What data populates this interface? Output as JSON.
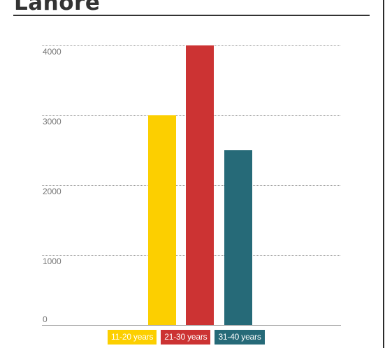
{
  "page": {
    "title": "Lahore"
  },
  "chart_data": {
    "type": "bar",
    "title": "Lahore",
    "categories": [
      "11-20 years",
      "21-30 years",
      "31-40 years"
    ],
    "values": [
      3000,
      4000,
      2500
    ],
    "colors": [
      "#fccf00",
      "#cc3333",
      "#266a78"
    ],
    "ylim": [
      0,
      4000
    ],
    "yticks": [
      0,
      1000,
      2000,
      3000,
      4000
    ],
    "xlabel": "",
    "ylabel": "",
    "grid": true,
    "legend": {
      "placement": "bottom",
      "items": [
        "11-20 years",
        "21-30 years",
        "31-40 years"
      ]
    }
  }
}
